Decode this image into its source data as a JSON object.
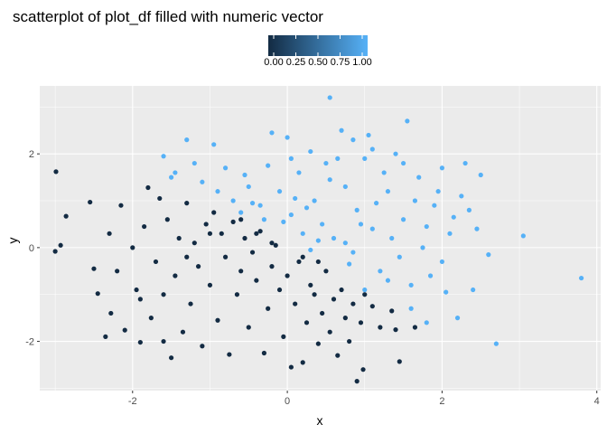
{
  "chart_data": {
    "type": "scatter",
    "title": "scatterplot of plot_df filled with numeric vector",
    "xlabel": "x",
    "ylabel": "y",
    "xlim": [
      -3.2,
      4.05
    ],
    "ylim": [
      -3.05,
      3.45
    ],
    "x_ticks": [
      -2,
      0,
      2,
      4
    ],
    "y_ticks": [
      -2,
      0,
      2
    ],
    "x_tick_labels": [
      "-2",
      "0",
      "2",
      "4"
    ],
    "y_tick_labels": [
      "-2",
      "0",
      "2"
    ],
    "grid": true,
    "legend": {
      "placement": "top",
      "type": "colorbar",
      "low_color": "#132B43",
      "high_color": "#56B1F7",
      "tick_values": [
        0,
        0.25,
        0.5,
        0.75,
        1
      ],
      "tick_labels": [
        "0.00",
        "0.25",
        "0.50",
        "0.75",
        "1.00"
      ]
    },
    "colors": {
      "panel_background": "#EBEBEB",
      "grid_major": "#FFFFFF",
      "low": "#132B43",
      "high": "#56B1F7"
    },
    "points": [
      {
        "x": -2.99,
        "y": 1.62,
        "c": 0
      },
      {
        "x": -2.93,
        "y": 0.05,
        "c": 0
      },
      {
        "x": -2.86,
        "y": 0.67,
        "c": 0
      },
      {
        "x": -3.0,
        "y": -0.08,
        "c": 0
      },
      {
        "x": -2.55,
        "y": 0.97,
        "c": 0
      },
      {
        "x": -2.5,
        "y": -0.45,
        "c": 0
      },
      {
        "x": -2.45,
        "y": -0.98,
        "c": 0
      },
      {
        "x": -2.3,
        "y": 0.3,
        "c": 0
      },
      {
        "x": -2.28,
        "y": -1.4,
        "c": 0
      },
      {
        "x": -2.2,
        "y": -0.5,
        "c": 0
      },
      {
        "x": -2.15,
        "y": 0.9,
        "c": 0
      },
      {
        "x": -2.1,
        "y": -1.76,
        "c": 0
      },
      {
        "x": -2.0,
        "y": 0.0,
        "c": 0
      },
      {
        "x": -1.95,
        "y": -0.9,
        "c": 0
      },
      {
        "x": -1.9,
        "y": -2.02,
        "c": 0
      },
      {
        "x": -1.85,
        "y": 0.45,
        "c": 0
      },
      {
        "x": -1.8,
        "y": 1.28,
        "c": 0
      },
      {
        "x": -1.76,
        "y": -1.5,
        "c": 0
      },
      {
        "x": -1.7,
        "y": -0.3,
        "c": 0
      },
      {
        "x": -1.65,
        "y": 1.05,
        "c": 0
      },
      {
        "x": -1.6,
        "y": -1.0,
        "c": 0
      },
      {
        "x": -1.55,
        "y": 0.6,
        "c": 0
      },
      {
        "x": -1.5,
        "y": -2.35,
        "c": 0
      },
      {
        "x": -1.45,
        "y": -0.6,
        "c": 0
      },
      {
        "x": -1.4,
        "y": 0.2,
        "c": 0
      },
      {
        "x": -1.35,
        "y": -1.8,
        "c": 0
      },
      {
        "x": -1.3,
        "y": 0.95,
        "c": 0
      },
      {
        "x": -1.25,
        "y": -1.2,
        "c": 0
      },
      {
        "x": -1.2,
        "y": 0.1,
        "c": 0
      },
      {
        "x": -1.15,
        "y": -0.4,
        "c": 0
      },
      {
        "x": -1.1,
        "y": -2.1,
        "c": 0
      },
      {
        "x": -1.05,
        "y": 0.5,
        "c": 0
      },
      {
        "x": -1.0,
        "y": -0.8,
        "c": 0
      },
      {
        "x": -0.95,
        "y": 0.75,
        "c": 0
      },
      {
        "x": -0.9,
        "y": -1.55,
        "c": 0
      },
      {
        "x": -0.85,
        "y": 0.3,
        "c": 0
      },
      {
        "x": -0.8,
        "y": -0.2,
        "c": 0
      },
      {
        "x": -0.75,
        "y": -2.28,
        "c": 0
      },
      {
        "x": -0.7,
        "y": 0.55,
        "c": 0
      },
      {
        "x": -0.65,
        "y": -1.0,
        "c": 0
      },
      {
        "x": -0.6,
        "y": -0.5,
        "c": 0
      },
      {
        "x": -0.55,
        "y": 0.2,
        "c": 0
      },
      {
        "x": -0.5,
        "y": -1.7,
        "c": 0
      },
      {
        "x": -0.45,
        "y": -0.1,
        "c": 0
      },
      {
        "x": -0.4,
        "y": -0.7,
        "c": 0
      },
      {
        "x": -0.35,
        "y": 0.35,
        "c": 0
      },
      {
        "x": -0.3,
        "y": -2.25,
        "c": 0
      },
      {
        "x": -0.25,
        "y": -1.3,
        "c": 0
      },
      {
        "x": -0.2,
        "y": -0.4,
        "c": 0
      },
      {
        "x": -0.15,
        "y": 0.05,
        "c": 0
      },
      {
        "x": -0.1,
        "y": -0.9,
        "c": 0
      },
      {
        "x": -0.05,
        "y": -1.9,
        "c": 0
      },
      {
        "x": 0.0,
        "y": -0.6,
        "c": 0
      },
      {
        "x": 0.05,
        "y": -2.55,
        "c": 0
      },
      {
        "x": 0.1,
        "y": -1.2,
        "c": 0
      },
      {
        "x": 0.15,
        "y": -0.3,
        "c": 0
      },
      {
        "x": 0.2,
        "y": -2.45,
        "c": 0
      },
      {
        "x": 0.25,
        "y": -1.6,
        "c": 0
      },
      {
        "x": 0.3,
        "y": -0.8,
        "c": 0
      },
      {
        "x": 0.35,
        "y": -1.0,
        "c": 0
      },
      {
        "x": 0.4,
        "y": -2.05,
        "c": 0
      },
      {
        "x": 0.45,
        "y": -1.4,
        "c": 0
      },
      {
        "x": 0.5,
        "y": -0.5,
        "c": 0
      },
      {
        "x": 0.55,
        "y": -1.8,
        "c": 0
      },
      {
        "x": 0.6,
        "y": -1.1,
        "c": 0
      },
      {
        "x": 0.65,
        "y": -2.3,
        "c": 0
      },
      {
        "x": 0.7,
        "y": -0.9,
        "c": 0
      },
      {
        "x": 0.75,
        "y": -1.5,
        "c": 0
      },
      {
        "x": 0.8,
        "y": -2.0,
        "c": 0
      },
      {
        "x": 0.85,
        "y": -1.2,
        "c": 0
      },
      {
        "x": 0.9,
        "y": -2.85,
        "c": 0
      },
      {
        "x": 0.95,
        "y": -1.6,
        "c": 0
      },
      {
        "x": 0.98,
        "y": -2.6,
        "c": 0
      },
      {
        "x": 1.0,
        "y": -1.0,
        "c": 0
      },
      {
        "x": 1.1,
        "y": -1.25,
        "c": 0
      },
      {
        "x": 1.2,
        "y": -1.7,
        "c": 0
      },
      {
        "x": 1.35,
        "y": -1.35,
        "c": 0
      },
      {
        "x": 1.45,
        "y": -2.43,
        "c": 0
      },
      {
        "x": 1.4,
        "y": -1.75,
        "c": 0
      },
      {
        "x": 1.65,
        "y": -1.7,
        "c": 0
      },
      {
        "x": -1.3,
        "y": -0.2,
        "c": 0
      },
      {
        "x": -1.0,
        "y": 0.3,
        "c": 0
      },
      {
        "x": -0.6,
        "y": 0.6,
        "c": 0
      },
      {
        "x": -0.4,
        "y": 0.3,
        "c": 0
      },
      {
        "x": 0.2,
        "y": -0.2,
        "c": 0
      },
      {
        "x": 0.4,
        "y": -0.3,
        "c": 0
      },
      {
        "x": -0.2,
        "y": 0.1,
        "c": 0
      },
      {
        "x": -1.9,
        "y": -1.1,
        "c": 0
      },
      {
        "x": -2.35,
        "y": -1.9,
        "c": 0
      },
      {
        "x": -1.6,
        "y": -2.0,
        "c": 0
      },
      {
        "x": -1.6,
        "y": 1.95,
        "c": 1
      },
      {
        "x": -1.45,
        "y": 1.6,
        "c": 1
      },
      {
        "x": -1.3,
        "y": 2.3,
        "c": 1
      },
      {
        "x": -1.1,
        "y": 1.4,
        "c": 1
      },
      {
        "x": -0.95,
        "y": 2.2,
        "c": 1
      },
      {
        "x": -0.8,
        "y": 1.7,
        "c": 1
      },
      {
        "x": -0.7,
        "y": 1.0,
        "c": 1
      },
      {
        "x": -0.6,
        "y": 0.75,
        "c": 1
      },
      {
        "x": -0.5,
        "y": 1.3,
        "c": 1
      },
      {
        "x": -0.35,
        "y": 0.9,
        "c": 1
      },
      {
        "x": -0.2,
        "y": 2.45,
        "c": 1
      },
      {
        "x": -0.1,
        "y": 1.2,
        "c": 1
      },
      {
        "x": 0.0,
        "y": 2.35,
        "c": 1
      },
      {
        "x": 0.05,
        "y": 0.7,
        "c": 1
      },
      {
        "x": 0.15,
        "y": 1.6,
        "c": 1
      },
      {
        "x": 0.2,
        "y": 0.3,
        "c": 1
      },
      {
        "x": 0.3,
        "y": 2.05,
        "c": 1
      },
      {
        "x": 0.35,
        "y": 1.0,
        "c": 1
      },
      {
        "x": 0.45,
        "y": 0.5,
        "c": 1
      },
      {
        "x": 0.5,
        "y": 1.8,
        "c": 1
      },
      {
        "x": 0.55,
        "y": 3.2,
        "c": 1
      },
      {
        "x": 0.6,
        "y": 0.2,
        "c": 1
      },
      {
        "x": 0.7,
        "y": 2.5,
        "c": 1
      },
      {
        "x": 0.75,
        "y": 1.3,
        "c": 1
      },
      {
        "x": 0.85,
        "y": -0.1,
        "c": 1
      },
      {
        "x": 0.9,
        "y": 0.8,
        "c": 1
      },
      {
        "x": 1.0,
        "y": 1.9,
        "c": 1
      },
      {
        "x": 1.05,
        "y": 2.4,
        "c": 1
      },
      {
        "x": 1.1,
        "y": 0.4,
        "c": 1
      },
      {
        "x": 1.2,
        "y": -0.5,
        "c": 1
      },
      {
        "x": 1.3,
        "y": 1.2,
        "c": 1
      },
      {
        "x": 1.4,
        "y": 2.0,
        "c": 1
      },
      {
        "x": 1.5,
        "y": 0.6,
        "c": 1
      },
      {
        "x": 1.55,
        "y": 2.7,
        "c": 1
      },
      {
        "x": 1.6,
        "y": -0.8,
        "c": 1
      },
      {
        "x": 1.7,
        "y": 1.5,
        "c": 1
      },
      {
        "x": 1.75,
        "y": 0.0,
        "c": 1
      },
      {
        "x": 1.8,
        "y": -1.6,
        "c": 1
      },
      {
        "x": 1.9,
        "y": 0.9,
        "c": 1
      },
      {
        "x": 2.0,
        "y": -0.3,
        "c": 1
      },
      {
        "x": 2.0,
        "y": 1.7,
        "c": 1
      },
      {
        "x": 2.1,
        "y": 0.3,
        "c": 1
      },
      {
        "x": 2.2,
        "y": -1.5,
        "c": 1
      },
      {
        "x": 2.25,
        "y": 1.1,
        "c": 1
      },
      {
        "x": 2.3,
        "y": 1.8,
        "c": 1
      },
      {
        "x": 2.4,
        "y": -0.9,
        "c": 1
      },
      {
        "x": 2.5,
        "y": 1.55,
        "c": 1
      },
      {
        "x": 2.6,
        "y": -0.15,
        "c": 1
      },
      {
        "x": 2.7,
        "y": -2.05,
        "c": 1
      },
      {
        "x": 3.05,
        "y": 0.25,
        "c": 1
      },
      {
        "x": 3.8,
        "y": -0.65,
        "c": 1
      },
      {
        "x": 2.35,
        "y": 0.8,
        "c": 1
      },
      {
        "x": 1.95,
        "y": 1.2,
        "c": 1
      },
      {
        "x": 1.25,
        "y": 1.6,
        "c": 1
      },
      {
        "x": 0.65,
        "y": 1.9,
        "c": 1
      },
      {
        "x": -0.25,
        "y": 1.75,
        "c": 1
      },
      {
        "x": -0.45,
        "y": 0.95,
        "c": 1
      },
      {
        "x": 0.1,
        "y": 1.05,
        "c": 1
      },
      {
        "x": 0.4,
        "y": 0.15,
        "c": 1
      },
      {
        "x": 0.8,
        "y": -0.35,
        "c": 1
      },
      {
        "x": 1.15,
        "y": 0.95,
        "c": 1
      },
      {
        "x": 1.45,
        "y": -0.2,
        "c": 1
      },
      {
        "x": 1.65,
        "y": 1.0,
        "c": 1
      },
      {
        "x": 1.85,
        "y": -0.6,
        "c": 1
      },
      {
        "x": 2.15,
        "y": 0.65,
        "c": 1
      },
      {
        "x": 2.45,
        "y": 0.4,
        "c": 1
      },
      {
        "x": 1.0,
        "y": -0.9,
        "c": 1
      },
      {
        "x": 1.35,
        "y": 0.2,
        "c": 1
      },
      {
        "x": 0.95,
        "y": 0.5,
        "c": 1
      },
      {
        "x": 0.25,
        "y": 0.85,
        "c": 1
      },
      {
        "x": -0.05,
        "y": 0.55,
        "c": 1
      },
      {
        "x": -0.3,
        "y": 0.6,
        "c": 1
      },
      {
        "x": 0.55,
        "y": 1.45,
        "c": 1
      },
      {
        "x": 1.1,
        "y": 2.1,
        "c": 1
      },
      {
        "x": 1.5,
        "y": 1.8,
        "c": 1
      },
      {
        "x": 2.05,
        "y": -0.95,
        "c": 1
      },
      {
        "x": 1.6,
        "y": -1.3,
        "c": 1
      },
      {
        "x": 1.3,
        "y": -0.7,
        "c": 1
      },
      {
        "x": 0.75,
        "y": 0.1,
        "c": 1
      },
      {
        "x": 0.3,
        "y": -0.05,
        "c": 1
      },
      {
        "x": -0.9,
        "y": 1.2,
        "c": 1
      },
      {
        "x": -1.2,
        "y": 1.8,
        "c": 1
      },
      {
        "x": -1.5,
        "y": 1.5,
        "c": 1
      },
      {
        "x": -0.55,
        "y": 1.55,
        "c": 1
      },
      {
        "x": 0.05,
        "y": 1.9,
        "c": 1
      },
      {
        "x": 0.85,
        "y": 2.3,
        "c": 1
      },
      {
        "x": 1.8,
        "y": 0.45,
        "c": 1
      }
    ]
  }
}
